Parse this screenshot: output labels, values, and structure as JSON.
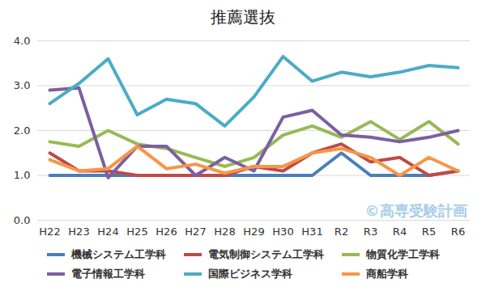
{
  "chart_data": {
    "type": "line",
    "title": "推薦選抜",
    "categories": [
      "H22",
      "H23",
      "H24",
      "H25",
      "H26",
      "H27",
      "H28",
      "H29",
      "H30",
      "H31",
      "R2",
      "R3",
      "R4",
      "R5",
      "R6"
    ],
    "series": [
      {
        "name": "機械システム工学科",
        "color": "#4a7ebb",
        "values": [
          1.0,
          1.0,
          1.0,
          1.0,
          1.0,
          1.0,
          1.0,
          1.0,
          1.0,
          1.0,
          1.5,
          1.0,
          1.0,
          1.0,
          1.1
        ]
      },
      {
        "name": "電気制御システム工学科",
        "color": "#be4b48",
        "values": [
          1.5,
          1.1,
          1.1,
          1.0,
          1.0,
          1.0,
          1.0,
          1.2,
          1.1,
          1.5,
          1.7,
          1.3,
          1.4,
          1.0,
          1.1
        ]
      },
      {
        "name": "物質化学工学科",
        "color": "#98b954",
        "values": [
          1.75,
          1.65,
          2.0,
          1.7,
          1.6,
          1.4,
          1.2,
          1.4,
          1.9,
          2.1,
          1.85,
          2.2,
          1.8,
          2.2,
          1.7
        ]
      },
      {
        "name": "電子情報工学科",
        "color": "#7d5fa0",
        "values": [
          2.9,
          2.95,
          0.95,
          1.65,
          1.65,
          1.0,
          1.4,
          1.1,
          2.3,
          2.45,
          1.9,
          1.85,
          1.75,
          1.85,
          2.0
        ]
      },
      {
        "name": "国際ビジネス学科",
        "color": "#4bacc6",
        "values": [
          2.6,
          3.05,
          3.6,
          2.35,
          2.7,
          2.6,
          2.1,
          2.75,
          3.65,
          3.1,
          3.3,
          3.2,
          3.3,
          3.45,
          3.4
        ]
      },
      {
        "name": "商船学科",
        "color": "#f79646",
        "values": [
          1.35,
          1.1,
          1.15,
          1.65,
          1.15,
          1.25,
          1.05,
          1.2,
          1.2,
          1.5,
          1.6,
          1.4,
          1.0,
          1.4,
          1.1
        ]
      }
    ],
    "ylim": [
      0,
      4
    ],
    "yticks": [
      {
        "value": 0,
        "label": "0.0"
      },
      {
        "value": 1,
        "label": "1.0"
      },
      {
        "value": 2,
        "label": "2.0"
      },
      {
        "value": 3,
        "label": "3.0"
      },
      {
        "value": 4,
        "label": "4.0"
      }
    ],
    "grid": true,
    "legend": "bottom",
    "annotations": [
      "©高専受験計画"
    ]
  }
}
